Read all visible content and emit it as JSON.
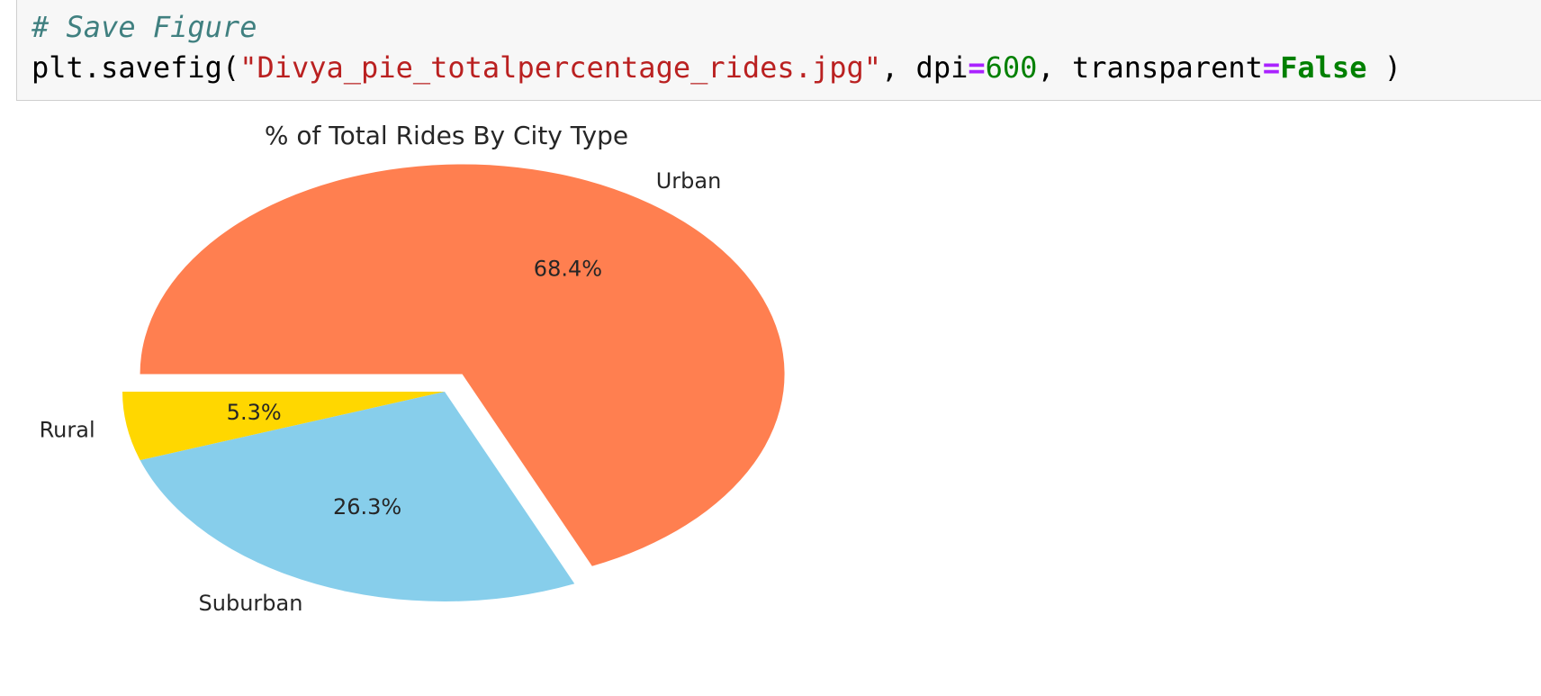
{
  "code_cell": {
    "comment": "# Save Figure",
    "code_tokens": [
      {
        "text": "plt.savefig(",
        "kind": "plain"
      },
      {
        "text": "\"Divya_pie_totalpercentage_rides.jpg\"",
        "kind": "string"
      },
      {
        "text": ", dpi",
        "kind": "plain"
      },
      {
        "text": "=",
        "kind": "op"
      },
      {
        "text": "600",
        "kind": "num"
      },
      {
        "text": ", transparent",
        "kind": "plain"
      },
      {
        "text": "=",
        "kind": "op"
      },
      {
        "text": "False",
        "kind": "kw"
      },
      {
        "text": " )",
        "kind": "plain"
      }
    ]
  },
  "chart_data": {
    "type": "pie",
    "title": "% of Total Rides By City Type",
    "slices": [
      {
        "label": "Rural",
        "value": 5.3,
        "pct_label": "5.3%",
        "color": "#ffd700",
        "explode": false
      },
      {
        "label": "Suburban",
        "value": 26.3,
        "pct_label": "26.3%",
        "color": "#87ceeb",
        "explode": false
      },
      {
        "label": "Urban",
        "value": 68.4,
        "pct_label": "68.4%",
        "color": "#ff7f50",
        "explode": true
      }
    ]
  }
}
